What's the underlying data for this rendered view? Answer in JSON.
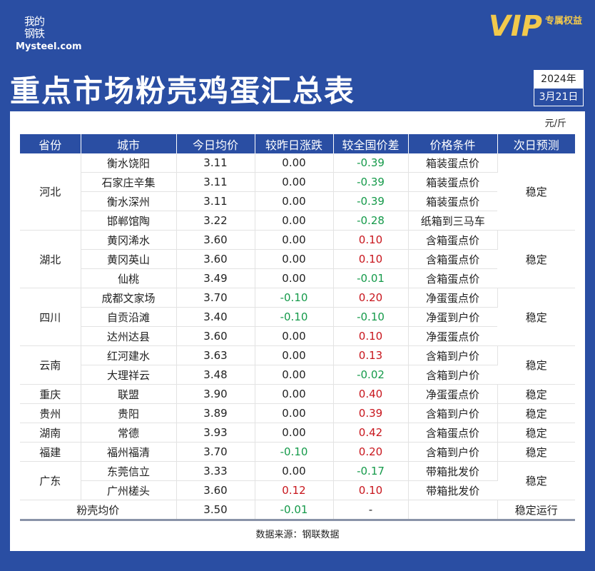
{
  "logo": {
    "cn": "我的钢铁",
    "en": "Mysteel.com"
  },
  "vip": {
    "v": "VIP",
    "label": "专属权益"
  },
  "title": "重点市场粉壳鸡蛋汇总表",
  "date": {
    "year": "2024年",
    "day": "3月21日"
  },
  "unit": "元/斤",
  "colors": {
    "background": "#2a4ea3",
    "up": "#c8161d",
    "down": "#159a4a"
  },
  "columns": [
    "省份",
    "城市",
    "今日均价",
    "较昨日涨跌",
    "较全国价差",
    "价格条件",
    "次日预测"
  ],
  "groups": [
    {
      "province": "河北",
      "forecast": "稳定",
      "rows": [
        [
          "衡水饶阳",
          "3.11",
          "0.00",
          "-0.39",
          "箱装蛋点价"
        ],
        [
          "石家庄辛集",
          "3.11",
          "0.00",
          "-0.39",
          "箱装蛋点价"
        ],
        [
          "衡水深州",
          "3.11",
          "0.00",
          "-0.39",
          "箱装蛋点价"
        ],
        [
          "邯郸馆陶",
          "3.22",
          "0.00",
          "-0.28",
          "纸箱到三马车"
        ]
      ]
    },
    {
      "province": "湖北",
      "forecast": "稳定",
      "rows": [
        [
          "黄冈浠水",
          "3.60",
          "0.00",
          "0.10",
          "含箱蛋点价"
        ],
        [
          "黄冈英山",
          "3.60",
          "0.00",
          "0.10",
          "含箱蛋点价"
        ],
        [
          "仙桃",
          "3.49",
          "0.00",
          "-0.01",
          "含箱蛋点价"
        ]
      ]
    },
    {
      "province": "四川",
      "forecast": "稳定",
      "rows": [
        [
          "成都文家场",
          "3.70",
          "-0.10",
          "0.20",
          "净蛋蛋点价"
        ],
        [
          "自贡沿滩",
          "3.40",
          "-0.10",
          "-0.10",
          "净蛋到户价"
        ],
        [
          "达州达县",
          "3.60",
          "0.00",
          "0.10",
          "净蛋蛋点价"
        ]
      ]
    },
    {
      "province": "云南",
      "forecast": "稳定",
      "rows": [
        [
          "红河建水",
          "3.63",
          "0.00",
          "0.13",
          "含箱到户价"
        ],
        [
          "大理祥云",
          "3.48",
          "0.00",
          "-0.02",
          "含箱到户价"
        ]
      ]
    },
    {
      "province": "重庆",
      "forecast": "稳定",
      "rows": [
        [
          "联盟",
          "3.90",
          "0.00",
          "0.40",
          "净蛋蛋点价"
        ]
      ]
    },
    {
      "province": "贵州",
      "forecast": "稳定",
      "rows": [
        [
          "贵阳",
          "3.89",
          "0.00",
          "0.39",
          "含箱到户价"
        ]
      ]
    },
    {
      "province": "湖南",
      "forecast": "稳定",
      "rows": [
        [
          "常德",
          "3.93",
          "0.00",
          "0.42",
          "含箱蛋点价"
        ]
      ]
    },
    {
      "province": "福建",
      "forecast": "稳定",
      "rows": [
        [
          "福州福清",
          "3.70",
          "-0.10",
          "0.20",
          "含箱到户价"
        ]
      ]
    },
    {
      "province": "广东",
      "forecast": "稳定",
      "rows": [
        [
          "东莞信立",
          "3.33",
          "0.00",
          "-0.17",
          "带箱批发价"
        ],
        [
          "广州槎头",
          "3.60",
          "0.12",
          "0.10",
          "带箱批发价"
        ]
      ]
    }
  ],
  "average": {
    "label": "粉壳均价",
    "price": "3.50",
    "change": "-0.01",
    "diff": "-",
    "condition": "",
    "forecast": "稳定运行"
  },
  "source": "数据来源：钢联数据"
}
